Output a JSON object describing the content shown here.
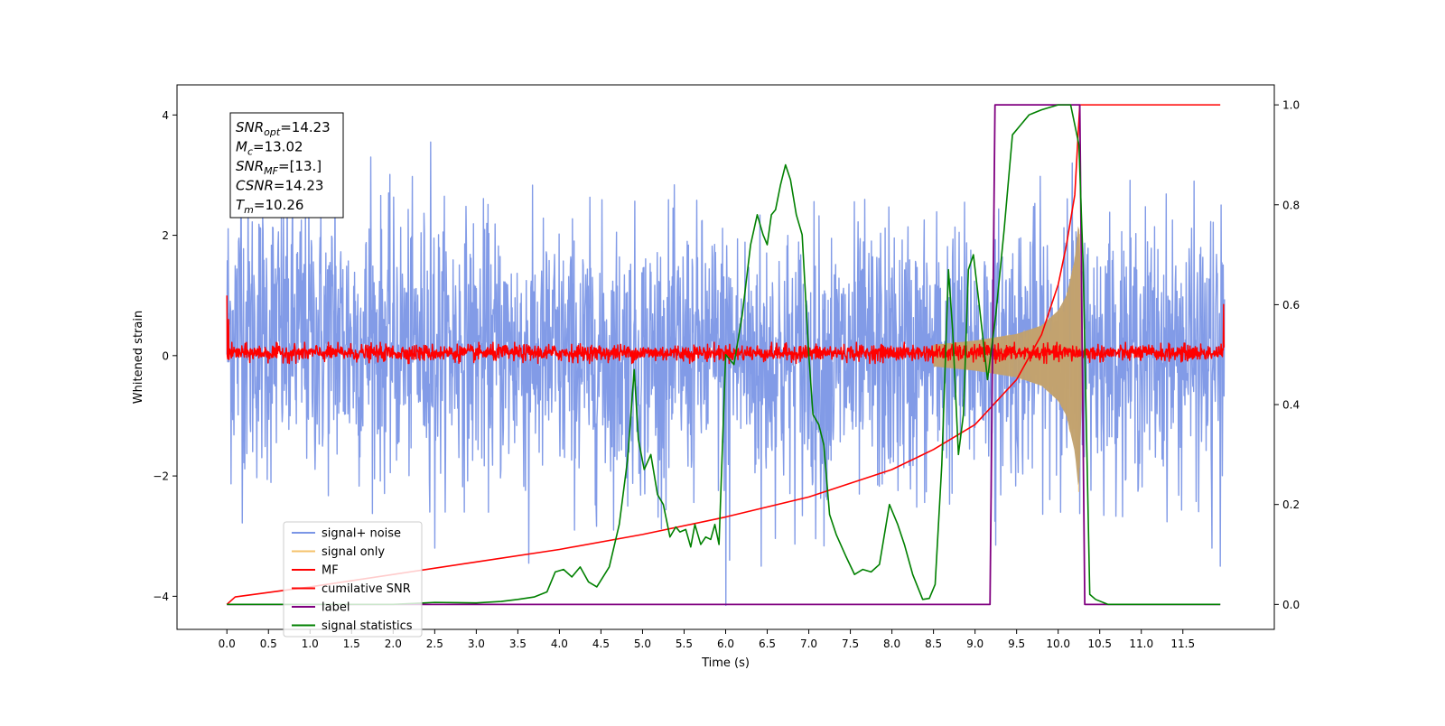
{
  "chart_data": {
    "type": "line",
    "xlabel": "Time (s)",
    "ylabel": "Whitened strain",
    "xlim": [
      -0.6,
      12.6
    ],
    "ylim": [
      -4.55,
      4.5
    ],
    "y2lim": [
      -0.05,
      1.04
    ],
    "x_ticks": [
      0.0,
      0.5,
      1.0,
      1.5,
      2.0,
      2.5,
      3.0,
      3.5,
      4.0,
      4.5,
      5.0,
      5.5,
      6.0,
      6.5,
      7.0,
      7.5,
      8.0,
      8.5,
      9.0,
      9.5,
      10.0,
      10.5,
      11.0,
      11.5
    ],
    "x_tick_labels": [
      "0.0",
      "0.5",
      "1.0",
      "1.5",
      "2.0",
      "2.5",
      "3.0",
      "3.5",
      "4.0",
      "4.5",
      "5.0",
      "5.5",
      "6.0",
      "6.5",
      "7.0",
      "7.5",
      "8.0",
      "8.5",
      "9.0",
      "9.5",
      "10.0",
      "10.5",
      "11.0",
      "11.5"
    ],
    "y_ticks": [
      -4,
      -2,
      0,
      2,
      4
    ],
    "y_tick_labels": [
      "−4",
      "−2",
      "0",
      "2",
      "4"
    ],
    "y2_ticks": [
      0.0,
      0.2,
      0.4,
      0.6,
      0.8,
      1.0
    ],
    "y2_tick_labels": [
      "0.0",
      "0.2",
      "0.4",
      "0.6",
      "0.8",
      "1.0"
    ],
    "grid": false,
    "legend_position": "lower-left",
    "annotation": {
      "lines": [
        {
          "var": "SNR",
          "sub": "opt",
          "value": "=14.23"
        },
        {
          "var": "M",
          "sub": "c",
          "value": "=13.02"
        },
        {
          "var": "SNR",
          "sub": "MF",
          "value": "=[13.]"
        },
        {
          "var": "CSNR",
          "sub": "",
          "value": "=14.23"
        },
        {
          "var": "T",
          "sub": "m",
          "value": "=10.26"
        }
      ]
    },
    "series": [
      {
        "name": "signal+ noise",
        "axis": "left",
        "color": "#7b96e6",
        "style": "noise",
        "x_range": [
          0.0,
          12.0
        ],
        "envelope_x": [
          0.0,
          1.0,
          2.0,
          3.0,
          4.0,
          5.0,
          6.0,
          7.0,
          8.0,
          9.0,
          10.0,
          11.0,
          12.0
        ],
        "envelope_high": [
          3.6,
          3.3,
          3.0,
          2.9,
          2.8,
          2.8,
          2.9,
          2.8,
          2.9,
          2.9,
          3.0,
          2.9,
          2.9
        ],
        "envelope_low": [
          -2.8,
          -2.7,
          -2.6,
          -2.6,
          -2.9,
          -2.9,
          -2.8,
          -3.2,
          -3.0,
          -2.8,
          -2.6,
          -2.7,
          -2.9
        ],
        "spikes": [
          [
            0.17,
            4.0
          ],
          [
            1.3,
            3.0
          ],
          [
            1.73,
            3.3
          ],
          [
            2.45,
            3.55
          ],
          [
            2.5,
            -3.2
          ],
          [
            3.63,
            -3.45
          ],
          [
            6.0,
            -4.15
          ],
          [
            6.05,
            -3.4
          ],
          [
            6.43,
            -3.5
          ],
          [
            9.25,
            -3.15
          ],
          [
            10.17,
            3.2
          ],
          [
            11.85,
            -3.2
          ],
          [
            11.95,
            -3.5
          ]
        ]
      },
      {
        "name": "signal only",
        "axis": "left",
        "color": "#f5c26b",
        "style": "chirp",
        "x": [
          8.5,
          9.0,
          9.5,
          9.8,
          10.0,
          10.1,
          10.2,
          10.25,
          10.3
        ],
        "amplitude": [
          0.18,
          0.25,
          0.36,
          0.5,
          0.75,
          1.0,
          1.6,
          2.3,
          0.0
        ]
      },
      {
        "name": "MF",
        "axis": "left",
        "color": "#ff0000",
        "style": "noise",
        "x_range": [
          0.0,
          12.0
        ],
        "envelope_x": [
          0.0,
          12.0
        ],
        "envelope_high": [
          0.22,
          0.22
        ],
        "envelope_low": [
          -0.13,
          -0.13
        ],
        "spikes": [
          [
            0.0,
            1.0
          ],
          [
            0.02,
            0.6
          ],
          [
            11.99,
            0.85
          ]
        ]
      },
      {
        "name": "cumilative SNR",
        "axis": "right",
        "color": "#ff0000",
        "style": "line",
        "x": [
          0.0,
          0.1,
          1.0,
          2.0,
          3.0,
          4.0,
          5.0,
          6.0,
          7.0,
          8.0,
          8.5,
          9.0,
          9.5,
          9.8,
          10.0,
          10.1,
          10.2,
          10.26,
          10.3,
          11.0,
          11.5,
          11.95
        ],
        "y": [
          0.0,
          0.015,
          0.035,
          0.06,
          0.085,
          0.11,
          0.14,
          0.175,
          0.215,
          0.27,
          0.31,
          0.36,
          0.45,
          0.54,
          0.64,
          0.72,
          0.82,
          1.0,
          1.0,
          1.0,
          1.0,
          1.0
        ]
      },
      {
        "name": "label",
        "axis": "right",
        "color": "#800080",
        "style": "line",
        "x": [
          0.0,
          9.18,
          9.24,
          10.26,
          10.32,
          11.95
        ],
        "y": [
          0.0,
          0.0,
          1.0,
          1.0,
          0.0,
          0.0
        ]
      },
      {
        "name": "signal statistics",
        "axis": "right",
        "color": "#008000",
        "style": "line",
        "x": [
          0.0,
          2.0,
          2.5,
          3.0,
          3.3,
          3.5,
          3.7,
          3.85,
          3.95,
          4.05,
          4.15,
          4.25,
          4.35,
          4.45,
          4.6,
          4.72,
          4.82,
          4.9,
          4.95,
          5.02,
          5.1,
          5.18,
          5.25,
          5.33,
          5.4,
          5.45,
          5.52,
          5.58,
          5.63,
          5.7,
          5.76,
          5.82,
          5.87,
          5.92,
          6.0,
          6.1,
          6.2,
          6.3,
          6.38,
          6.45,
          6.5,
          6.55,
          6.6,
          6.66,
          6.72,
          6.78,
          6.85,
          6.92,
          7.0,
          7.05,
          7.12,
          7.18,
          7.25,
          7.33,
          7.45,
          7.55,
          7.65,
          7.75,
          7.85,
          7.97,
          8.07,
          8.15,
          8.25,
          8.37,
          8.45,
          8.52,
          8.6,
          8.68,
          8.73,
          8.8,
          8.86,
          8.92,
          8.98,
          9.05,
          9.15,
          9.25,
          9.35,
          9.45,
          9.55,
          9.65,
          9.8,
          10.0,
          10.15,
          10.25,
          10.3,
          10.38,
          10.45,
          10.6,
          11.95
        ],
        "y": [
          0.0,
          0.0,
          0.004,
          0.003,
          0.006,
          0.01,
          0.015,
          0.025,
          0.065,
          0.07,
          0.055,
          0.075,
          0.045,
          0.035,
          0.075,
          0.16,
          0.29,
          0.47,
          0.33,
          0.27,
          0.3,
          0.22,
          0.2,
          0.135,
          0.155,
          0.145,
          0.15,
          0.115,
          0.16,
          0.12,
          0.135,
          0.13,
          0.16,
          0.12,
          0.5,
          0.48,
          0.58,
          0.72,
          0.78,
          0.74,
          0.72,
          0.78,
          0.79,
          0.84,
          0.88,
          0.85,
          0.78,
          0.74,
          0.5,
          0.38,
          0.36,
          0.32,
          0.18,
          0.14,
          0.095,
          0.06,
          0.07,
          0.065,
          0.08,
          0.2,
          0.16,
          0.12,
          0.06,
          0.01,
          0.012,
          0.04,
          0.28,
          0.67,
          0.55,
          0.3,
          0.38,
          0.67,
          0.7,
          0.6,
          0.45,
          0.58,
          0.75,
          0.94,
          0.96,
          0.98,
          0.99,
          1.0,
          1.0,
          0.92,
          0.68,
          0.02,
          0.01,
          0.0,
          0.0
        ]
      }
    ]
  }
}
